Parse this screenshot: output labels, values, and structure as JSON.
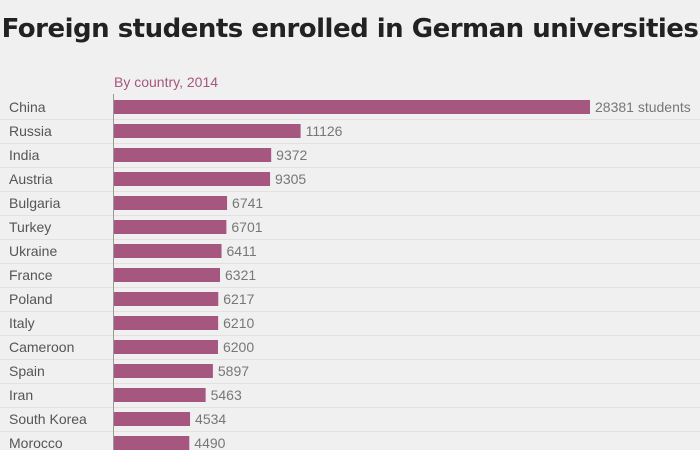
{
  "title": "Foreign students enrolled in German universities",
  "chart_data": {
    "type": "bar",
    "orientation": "horizontal",
    "title": "Foreign students enrolled in German universities",
    "subtitle": "By country, 2014",
    "value_suffix_first": " students",
    "bar_color": "#a5577f",
    "categories": [
      "China",
      "Russia",
      "India",
      "Austria",
      "Bulgaria",
      "Turkey",
      "Ukraine",
      "France",
      "Poland",
      "Italy",
      "Cameroon",
      "Spain",
      "Iran",
      "South Korea",
      "Morocco"
    ],
    "values": [
      28381,
      11126,
      9372,
      9305,
      6741,
      6701,
      6411,
      6321,
      6217,
      6210,
      6200,
      5897,
      5463,
      4534,
      4490
    ],
    "xlim": [
      0,
      28381
    ]
  }
}
